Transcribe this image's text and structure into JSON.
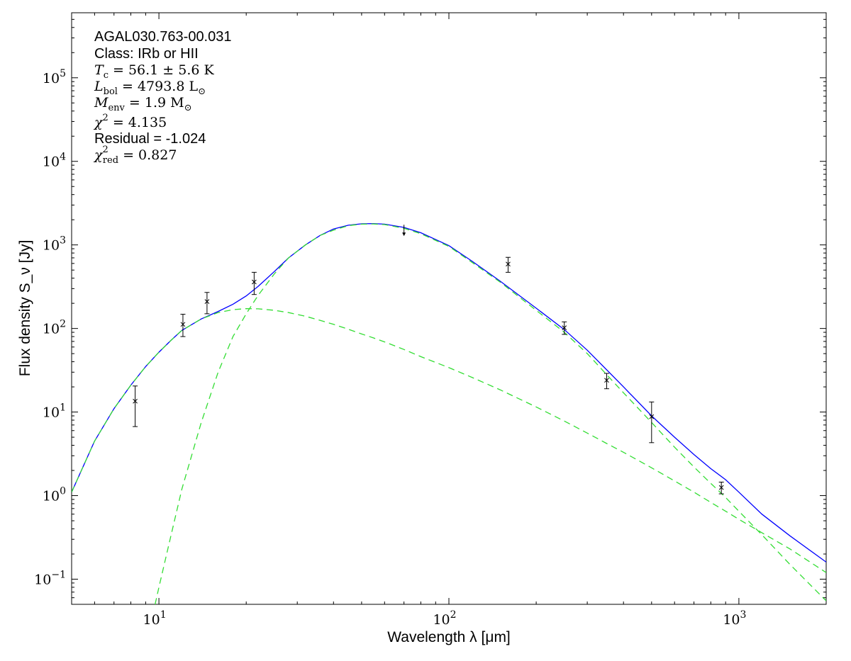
{
  "chart_data": {
    "type": "scatter",
    "title": "",
    "xlabel": "Wavelength λ [μm]",
    "ylabel": "Flux density S_ν [Jy]",
    "xscale": "log",
    "yscale": "log",
    "xlim": [
      5,
      2000
    ],
    "ylim": [
      0.05,
      600000
    ],
    "grid": false,
    "x_ticks": [
      {
        "value": 10,
        "base": "10",
        "exp": "1"
      },
      {
        "value": 100,
        "base": "10",
        "exp": "2"
      },
      {
        "value": 1000,
        "base": "10",
        "exp": "3"
      }
    ],
    "y_ticks": [
      {
        "value": 0.1,
        "base": "10",
        "exp": "−1"
      },
      {
        "value": 1,
        "base": "10",
        "exp": "0"
      },
      {
        "value": 10,
        "base": "10",
        "exp": "1"
      },
      {
        "value": 100,
        "base": "10",
        "exp": "2"
      },
      {
        "value": 1000,
        "base": "10",
        "exp": "3"
      },
      {
        "value": 10000,
        "base": "10",
        "exp": "4"
      },
      {
        "value": 100000,
        "base": "10",
        "exp": "5"
      }
    ],
    "annotations": {
      "source": "AGAL030.763-00.031",
      "class": "Class: IRb or HII",
      "tc": {
        "sym": "T",
        "sub": "c",
        "rest": " = 56.1 ± 5.6 K"
      },
      "lbol": {
        "sym": "L",
        "sub": "bol",
        "rest": " = 4793.8 L",
        "tail": "⊙"
      },
      "menv": {
        "sym": "M",
        "sub": "env",
        "rest": " = 1.9 M",
        "tail": "⊙"
      },
      "chi2": {
        "sym": "χ",
        "sup": "2",
        "rest": " = 4.135"
      },
      "residual": "Residual = -1.024",
      "chi2red": {
        "sym": "χ",
        "sup": "2",
        "sub": "red",
        "rest": " = 0.827"
      }
    },
    "series": [
      {
        "name": "Photometry",
        "kind": "errorbar",
        "color": "#000000",
        "points": [
          {
            "x": 8.28,
            "y": 13.5,
            "err_lo": 6.7,
            "err_hi": 20.5
          },
          {
            "x": 12.1,
            "y": 112,
            "err_lo": 80,
            "err_hi": 148
          },
          {
            "x": 14.65,
            "y": 210,
            "err_lo": 150,
            "err_hi": 270
          },
          {
            "x": 21.3,
            "y": 360,
            "err_lo": 255,
            "err_hi": 470
          },
          {
            "x": 160,
            "y": 590,
            "err_lo": 470,
            "err_hi": 710
          },
          {
            "x": 250,
            "y": 102,
            "err_lo": 85,
            "err_hi": 120
          },
          {
            "x": 350,
            "y": 24,
            "err_lo": 19,
            "err_hi": 29
          },
          {
            "x": 500,
            "y": 8.8,
            "err_lo": 4.3,
            "err_hi": 13.2
          },
          {
            "x": 870,
            "y": 1.25,
            "err_lo": 1.05,
            "err_hi": 1.45
          }
        ]
      },
      {
        "name": "Upper limit",
        "kind": "upper-limit",
        "color": "#000000",
        "points": [
          {
            "x": 70,
            "y": 1550
          }
        ]
      },
      {
        "name": "Total model",
        "kind": "line",
        "color": "#0000ff",
        "style": "solid",
        "x": [
          5,
          6,
          7,
          8,
          9,
          10,
          11,
          12,
          14,
          16,
          18,
          20,
          22,
          25,
          28,
          32,
          36,
          40,
          45,
          50,
          55,
          60,
          70,
          80,
          100,
          120,
          150,
          200,
          250,
          300,
          350,
          400,
          500,
          600,
          700,
          800,
          900,
          1000,
          1200,
          1500,
          2000
        ],
        "y": [
          1.1,
          4.5,
          11,
          21,
          35,
          52,
          72,
          95,
          130,
          160,
          195,
          245,
          320,
          480,
          700,
          1000,
          1300,
          1550,
          1720,
          1790,
          1800,
          1770,
          1620,
          1400,
          980,
          640,
          370,
          175,
          97,
          55,
          32,
          20,
          9,
          5,
          3.1,
          2.1,
          1.55,
          1.1,
          0.6,
          0.33,
          0.16
        ]
      },
      {
        "name": "Warm component",
        "kind": "line",
        "color": "#33dd33",
        "style": "dashed",
        "x": [
          5,
          6,
          7,
          8,
          9,
          10,
          11,
          12,
          14,
          16,
          18,
          20,
          22,
          25,
          28,
          32,
          36,
          40,
          45,
          50,
          55,
          60,
          70,
          80,
          100,
          120,
          150,
          200,
          250,
          300,
          350,
          400,
          500,
          600,
          700,
          800,
          900,
          1000,
          1200,
          1500,
          2000
        ],
        "y": [
          1.1,
          4.5,
          11,
          21,
          35,
          52,
          72,
          95,
          130,
          155,
          168,
          173,
          172,
          165,
          155,
          140,
          125,
          112,
          98,
          86,
          77,
          69,
          56,
          46,
          34,
          26,
          18.5,
          11.5,
          7.8,
          5.6,
          4.2,
          3.3,
          2.15,
          1.5,
          1.1,
          0.83,
          0.65,
          0.52,
          0.36,
          0.23,
          0.12
        ]
      },
      {
        "name": "Cold component",
        "kind": "line",
        "color": "#33dd33",
        "style": "dashed",
        "x": [
          9.7,
          10,
          11,
          12,
          14,
          16,
          18,
          20,
          22,
          25,
          28,
          32,
          36,
          40,
          45,
          50,
          55,
          60,
          70,
          80,
          100,
          120,
          150,
          200,
          250,
          300,
          350,
          400,
          500,
          600,
          700,
          800,
          900,
          1000,
          1200,
          1500,
          2000
        ],
        "y": [
          0.05,
          0.08,
          0.33,
          1.2,
          7.5,
          30,
          80,
          150,
          250,
          450,
          700,
          1000,
          1300,
          1500,
          1700,
          1770,
          1780,
          1750,
          1580,
          1360,
          960,
          620,
          360,
          165,
          90,
          50,
          28,
          17,
          7.5,
          3.8,
          2.2,
          1.4,
          0.95,
          0.65,
          0.34,
          0.15,
          0.055
        ]
      }
    ]
  }
}
